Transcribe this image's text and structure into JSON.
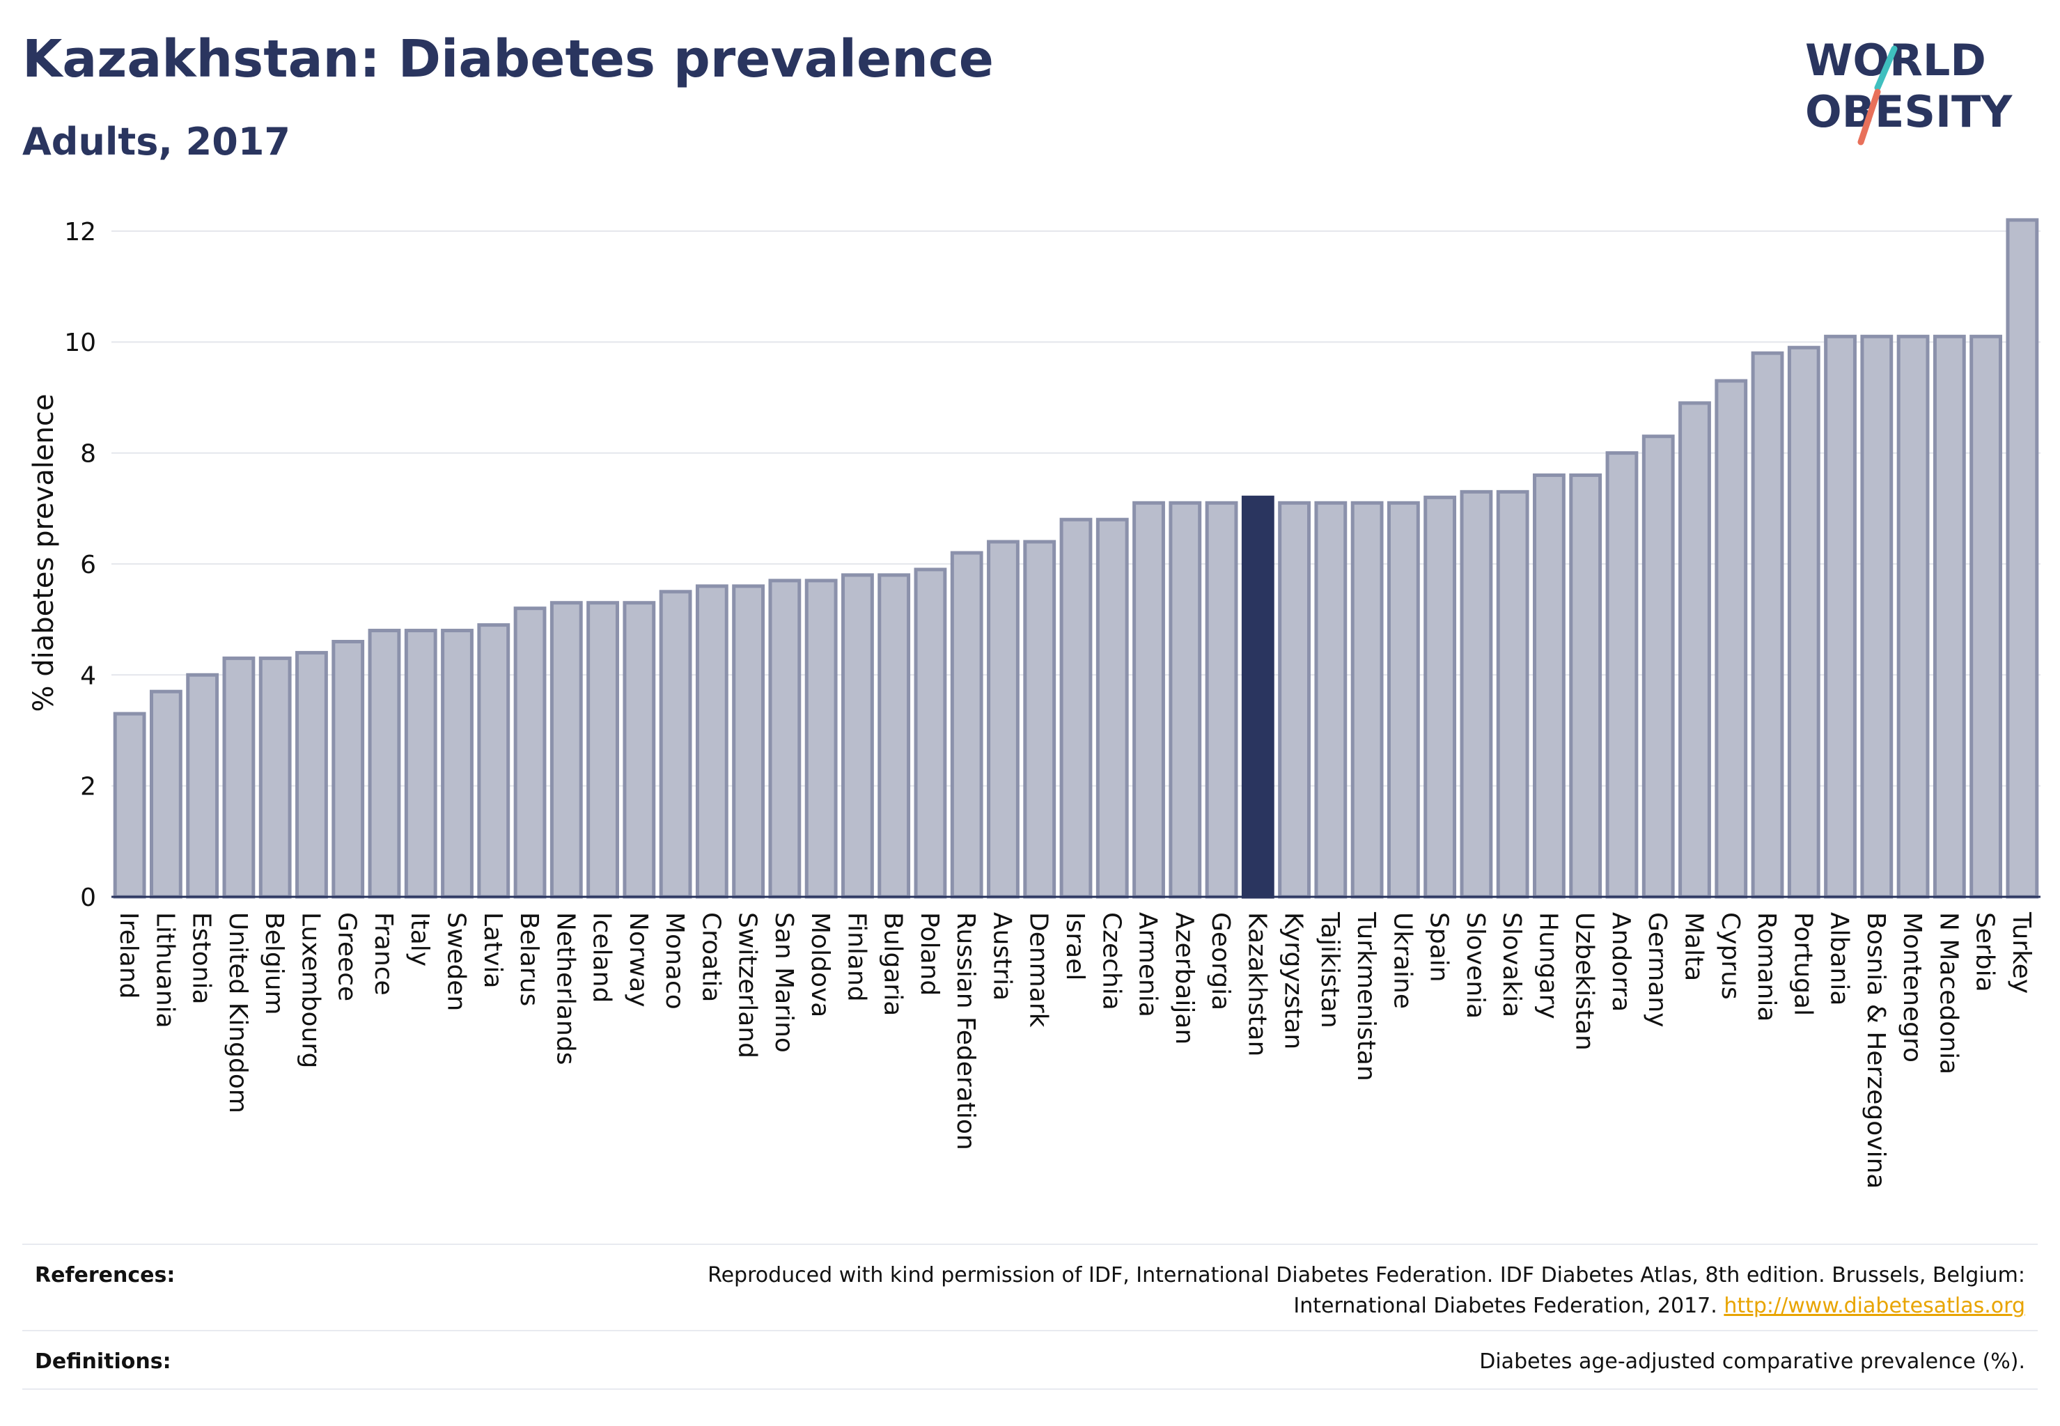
{
  "header": {
    "title": "Kazakhstan: Diabetes prevalence",
    "subtitle": "Adults, 2017"
  },
  "logo": {
    "line1": "WORLD",
    "line2": "OBESITY",
    "colors": {
      "text": "#2a355f",
      "slash_top": "#3fbfbf",
      "slash_bottom": "#e8705a"
    }
  },
  "chart_data": {
    "type": "bar",
    "ylabel": "% diabetes prevalence",
    "xlabel": "",
    "ylim": [
      0,
      12.4
    ],
    "yticks": [
      0,
      2,
      4,
      6,
      8,
      10,
      12
    ],
    "grid": true,
    "highlight": "Kazakhstan",
    "colors": {
      "bar": "#b9bdcc",
      "bar_edge": "#8b91ab",
      "highlight": "#2a355f"
    },
    "categories": [
      "Ireland",
      "Lithuania",
      "Estonia",
      "United Kingdom",
      "Belgium",
      "Luxembourg",
      "Greece",
      "France",
      "Italy",
      "Sweden",
      "Latvia",
      "Belarus",
      "Netherlands",
      "Iceland",
      "Norway",
      "Monaco",
      "Croatia",
      "Switzerland",
      "San Marino",
      "Moldova",
      "Finland",
      "Bulgaria",
      "Poland",
      "Russian Federation",
      "Austria",
      "Denmark",
      "Israel",
      "Czechia",
      "Armenia",
      "Azerbaijan",
      "Georgia",
      "Kazakhstan",
      "Kyrgyzstan",
      "Tajikistan",
      "Turkmenistan",
      "Ukraine",
      "Spain",
      "Slovenia",
      "Slovakia",
      "Hungary",
      "Uzbekistan",
      "Andorra",
      "Germany",
      "Malta",
      "Cyprus",
      "Romania",
      "Portugal",
      "Albania",
      "Bosnia & Herzegovina",
      "Montenegro",
      "N Macedonia",
      "Serbia",
      "Turkey"
    ],
    "values": [
      3.3,
      3.7,
      4.0,
      4.3,
      4.3,
      4.4,
      4.6,
      4.8,
      4.8,
      4.8,
      4.9,
      5.2,
      5.3,
      5.3,
      5.3,
      5.5,
      5.6,
      5.6,
      5.7,
      5.7,
      5.8,
      5.8,
      5.9,
      6.2,
      6.4,
      6.4,
      6.8,
      6.8,
      7.1,
      7.1,
      7.1,
      7.2,
      7.1,
      7.1,
      7.1,
      7.1,
      7.2,
      7.3,
      7.3,
      7.6,
      7.6,
      8.0,
      8.3,
      8.9,
      9.3,
      9.8,
      9.9,
      10.1,
      10.1,
      10.1,
      10.1,
      10.1,
      12.2
    ]
  },
  "footer": {
    "references_label": "References:",
    "references_line1": "Reproduced with kind permission of IDF, International Diabetes Federation. IDF Diabetes Atlas, 8th edition. Brussels, Belgium:",
    "references_line2": "International Diabetes Federation, 2017.",
    "references_link": "http://www.diabetesatlas.org",
    "definitions_label": "Definitions:",
    "definitions_text": "Diabetes age-adjusted comparative prevalence (%)."
  }
}
